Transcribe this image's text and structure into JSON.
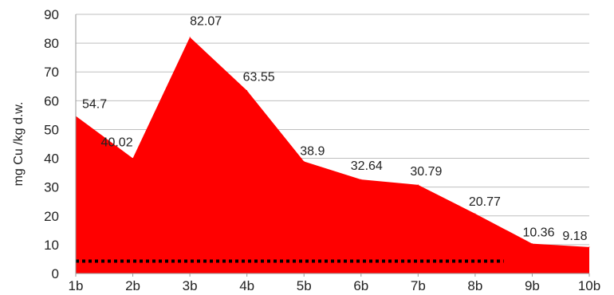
{
  "chart_data": {
    "type": "area",
    "title": "",
    "xlabel": "",
    "ylabel": "mg Cu /kg d.w.",
    "categories": [
      "1b",
      "2b",
      "3b",
      "4b",
      "5b",
      "6b",
      "7b",
      "8b",
      "9b",
      "10b"
    ],
    "series": [
      {
        "values": [
          54.7,
          40.02,
          82.07,
          63.55,
          38.9,
          32.64,
          30.79,
          20.77,
          10.36,
          9.18
        ],
        "color": "#ff0000"
      }
    ],
    "data_labels": [
      "54.7",
      "40.02",
      "82.07",
      "63.55",
      "38.9",
      "32.64",
      "30.79",
      "20.77",
      "10.36",
      "9.18"
    ],
    "reference_line": {
      "value": 4.3,
      "x_start": "1b",
      "x_end": "8.5b",
      "color": "#000000",
      "style": "dotted"
    },
    "ylim": [
      0,
      90
    ],
    "yticks": [
      0,
      10,
      20,
      30,
      40,
      50,
      60,
      70,
      80,
      90
    ],
    "grid": true,
    "legend": "none"
  }
}
